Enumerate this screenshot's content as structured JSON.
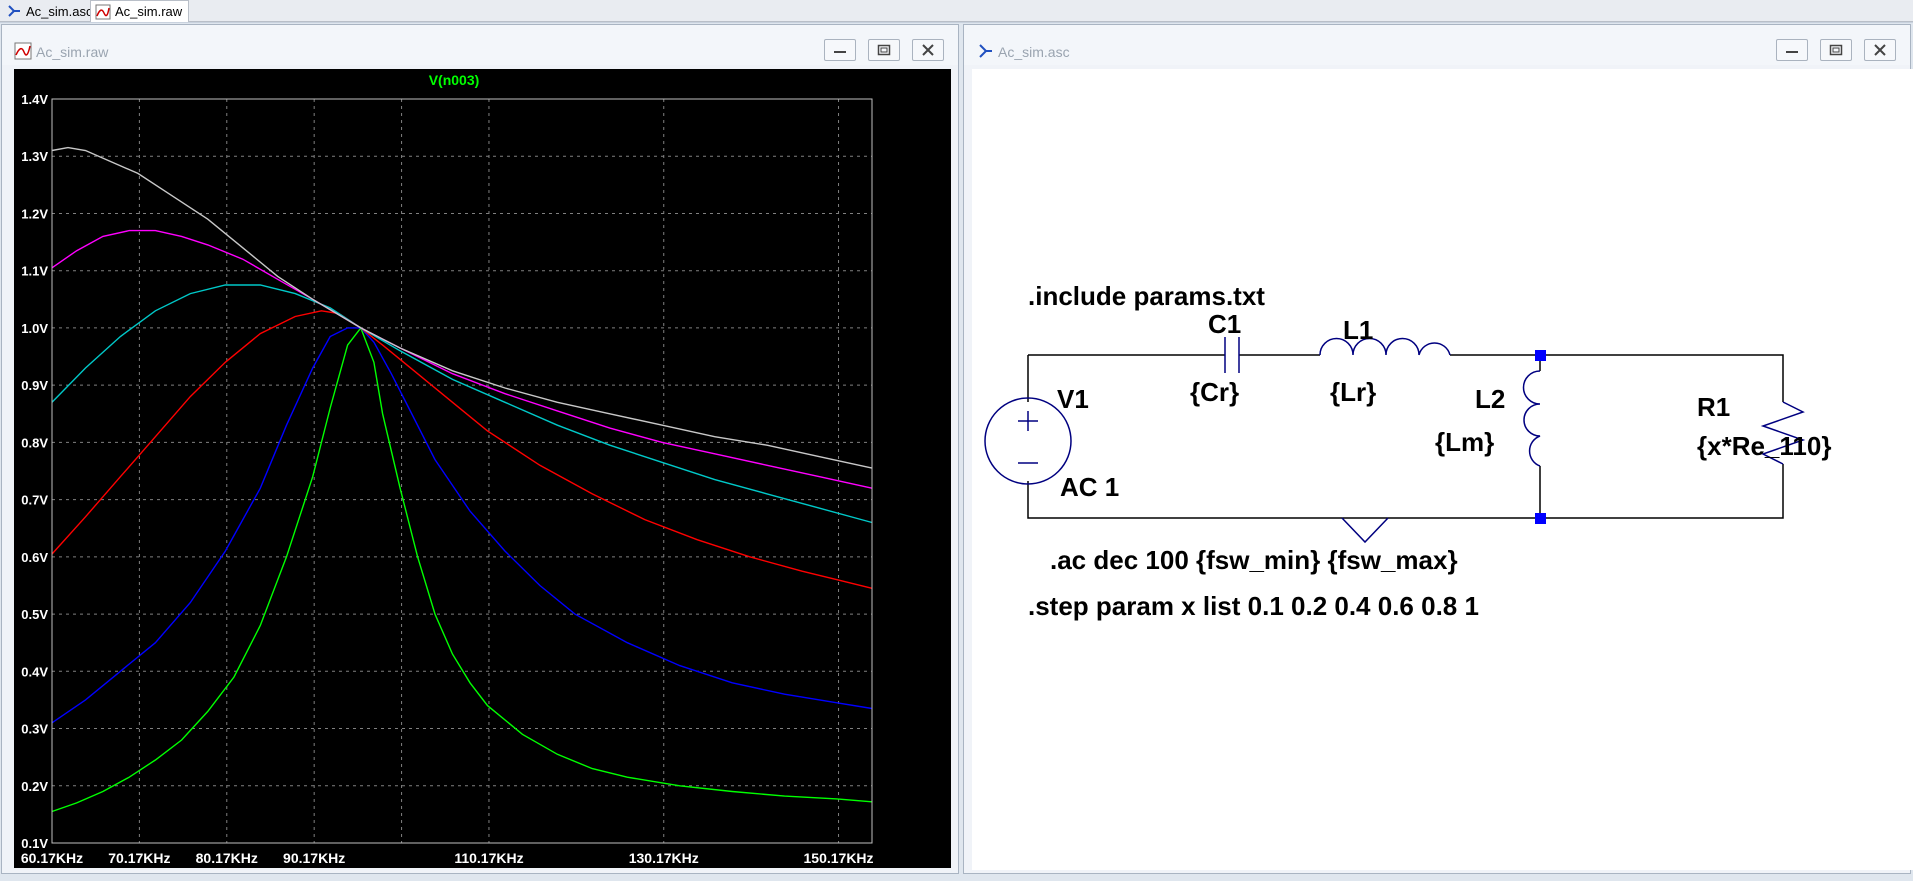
{
  "tabs": [
    {
      "label": "Ac_sim.asc",
      "icon": "schematic-icon"
    },
    {
      "label": "Ac_sim.raw",
      "icon": "waveform-icon"
    }
  ],
  "plot_window": {
    "title": "Ac_sim.raw",
    "icon": "waveform-icon",
    "buttons": [
      "minimize-icon",
      "restore-icon",
      "close-icon"
    ]
  },
  "schematic_window": {
    "title": "Ac_sim.asc",
    "icon": "schematic-icon",
    "buttons": [
      "minimize-icon",
      "restore-icon",
      "close-icon"
    ]
  },
  "chart_data": {
    "type": "line",
    "title": "V(n003)",
    "xlabel": "",
    "ylabel": "",
    "x_ticks": [
      "60.17KHz",
      "70.17KHz",
      "80.17KHz",
      "90.17KHz",
      "110.17KHz",
      "130.17KHz",
      "150.17KHz"
    ],
    "y_ticks": [
      "1.4V",
      "1.3V",
      "1.2V",
      "1.1V",
      "1.0V",
      "0.9V",
      "0.8V",
      "0.7V",
      "0.6V",
      "0.5V",
      "0.4V",
      "0.3V",
      "0.2V",
      "0.1V"
    ],
    "xlim_khz": [
      60.17,
      154.0
    ],
    "ylim": [
      0.1,
      1.4
    ],
    "grid": true,
    "background": "#000000",
    "title_color": "#00ff00",
    "series": [
      {
        "color": "#00ff00",
        "points": [
          [
            60.17,
            0.155
          ],
          [
            63,
            0.17
          ],
          [
            66,
            0.19
          ],
          [
            69,
            0.215
          ],
          [
            72,
            0.245
          ],
          [
            75,
            0.28
          ],
          [
            78,
            0.33
          ],
          [
            81,
            0.39
          ],
          [
            84,
            0.48
          ],
          [
            87,
            0.6
          ],
          [
            90,
            0.74
          ],
          [
            92,
            0.86
          ],
          [
            94,
            0.97
          ],
          [
            95.5,
            1.0
          ],
          [
            97,
            0.94
          ],
          [
            98,
            0.85
          ],
          [
            100,
            0.72
          ],
          [
            102,
            0.6
          ],
          [
            104,
            0.5
          ],
          [
            106,
            0.43
          ],
          [
            108,
            0.38
          ],
          [
            110,
            0.34
          ],
          [
            114,
            0.29
          ],
          [
            118,
            0.255
          ],
          [
            122,
            0.23
          ],
          [
            126,
            0.215
          ],
          [
            132,
            0.2
          ],
          [
            138,
            0.19
          ],
          [
            144,
            0.182
          ],
          [
            150,
            0.177
          ],
          [
            154,
            0.172
          ]
        ]
      },
      {
        "color": "#0000ff",
        "points": [
          [
            60.17,
            0.31
          ],
          [
            64,
            0.35
          ],
          [
            68,
            0.4
          ],
          [
            72,
            0.45
          ],
          [
            76,
            0.52
          ],
          [
            80,
            0.61
          ],
          [
            84,
            0.72
          ],
          [
            87,
            0.83
          ],
          [
            90,
            0.93
          ],
          [
            92,
            0.985
          ],
          [
            94,
            1.0
          ],
          [
            95.5,
            1.0
          ],
          [
            97,
            0.975
          ],
          [
            99,
            0.92
          ],
          [
            101,
            0.86
          ],
          [
            104,
            0.77
          ],
          [
            108,
            0.68
          ],
          [
            112,
            0.61
          ],
          [
            116,
            0.55
          ],
          [
            120,
            0.5
          ],
          [
            126,
            0.45
          ],
          [
            132,
            0.41
          ],
          [
            138,
            0.38
          ],
          [
            144,
            0.36
          ],
          [
            150,
            0.345
          ],
          [
            154,
            0.335
          ]
        ]
      },
      {
        "color": "#ff0000",
        "points": [
          [
            60.17,
            0.605
          ],
          [
            64,
            0.67
          ],
          [
            68,
            0.74
          ],
          [
            72,
            0.81
          ],
          [
            76,
            0.88
          ],
          [
            80,
            0.94
          ],
          [
            84,
            0.99
          ],
          [
            88,
            1.02
          ],
          [
            91,
            1.03
          ],
          [
            93,
            1.025
          ],
          [
            95.5,
            1.0
          ],
          [
            98,
            0.97
          ],
          [
            102,
            0.92
          ],
          [
            106,
            0.87
          ],
          [
            110,
            0.82
          ],
          [
            116,
            0.76
          ],
          [
            122,
            0.71
          ],
          [
            128,
            0.665
          ],
          [
            134,
            0.63
          ],
          [
            140,
            0.6
          ],
          [
            146,
            0.575
          ],
          [
            150,
            0.56
          ],
          [
            154,
            0.545
          ]
        ]
      },
      {
        "color": "#00c8c8",
        "points": [
          [
            60.17,
            0.87
          ],
          [
            64,
            0.93
          ],
          [
            68,
            0.985
          ],
          [
            72,
            1.03
          ],
          [
            76,
            1.06
          ],
          [
            80,
            1.075
          ],
          [
            84,
            1.075
          ],
          [
            88,
            1.06
          ],
          [
            92,
            1.035
          ],
          [
            95.5,
            1.0
          ],
          [
            100,
            0.96
          ],
          [
            106,
            0.91
          ],
          [
            112,
            0.87
          ],
          [
            118,
            0.83
          ],
          [
            124,
            0.795
          ],
          [
            130,
            0.765
          ],
          [
            136,
            0.735
          ],
          [
            142,
            0.71
          ],
          [
            148,
            0.685
          ],
          [
            154,
            0.66
          ]
        ]
      },
      {
        "color": "#ff00ff",
        "points": [
          [
            60.17,
            1.105
          ],
          [
            63,
            1.135
          ],
          [
            66,
            1.16
          ],
          [
            69,
            1.17
          ],
          [
            72,
            1.17
          ],
          [
            75,
            1.16
          ],
          [
            78,
            1.145
          ],
          [
            82,
            1.12
          ],
          [
            86,
            1.085
          ],
          [
            90,
            1.05
          ],
          [
            95.5,
            1.0
          ],
          [
            100,
            0.965
          ],
          [
            106,
            0.92
          ],
          [
            112,
            0.885
          ],
          [
            118,
            0.855
          ],
          [
            124,
            0.825
          ],
          [
            130,
            0.8
          ],
          [
            136,
            0.78
          ],
          [
            142,
            0.76
          ],
          [
            148,
            0.74
          ],
          [
            154,
            0.72
          ]
        ]
      },
      {
        "color": "#c8c8c8",
        "points": [
          [
            60.17,
            1.31
          ],
          [
            62,
            1.315
          ],
          [
            64,
            1.31
          ],
          [
            67,
            1.29
          ],
          [
            70,
            1.27
          ],
          [
            74,
            1.23
          ],
          [
            78,
            1.19
          ],
          [
            82,
            1.14
          ],
          [
            86,
            1.09
          ],
          [
            90,
            1.05
          ],
          [
            95.5,
            1.0
          ],
          [
            100,
            0.965
          ],
          [
            106,
            0.925
          ],
          [
            112,
            0.895
          ],
          [
            118,
            0.87
          ],
          [
            124,
            0.85
          ],
          [
            130,
            0.83
          ],
          [
            136,
            0.81
          ],
          [
            142,
            0.795
          ],
          [
            148,
            0.775
          ],
          [
            154,
            0.755
          ]
        ]
      }
    ]
  },
  "schematic": {
    "directive_include": ".include params.txt",
    "directive_ac": ".ac dec 100 {fsw_min} {fsw_max}",
    "directive_step": ".step param x list 0.1 0.2 0.4 0.6 0.8 1",
    "v1_name": "V1",
    "v1_value": "AC 1",
    "c1_name": "C1",
    "c1_value": "{Cr}",
    "l1_name": "L1",
    "l1_value": "{Lr}",
    "l2_name": "L2",
    "l2_value": "{Lm}",
    "r1_name": "R1",
    "r1_value": "{x*Re_110}",
    "wire_color": "#000000",
    "component_color": "#000080",
    "node_color": "#0000ff"
  }
}
